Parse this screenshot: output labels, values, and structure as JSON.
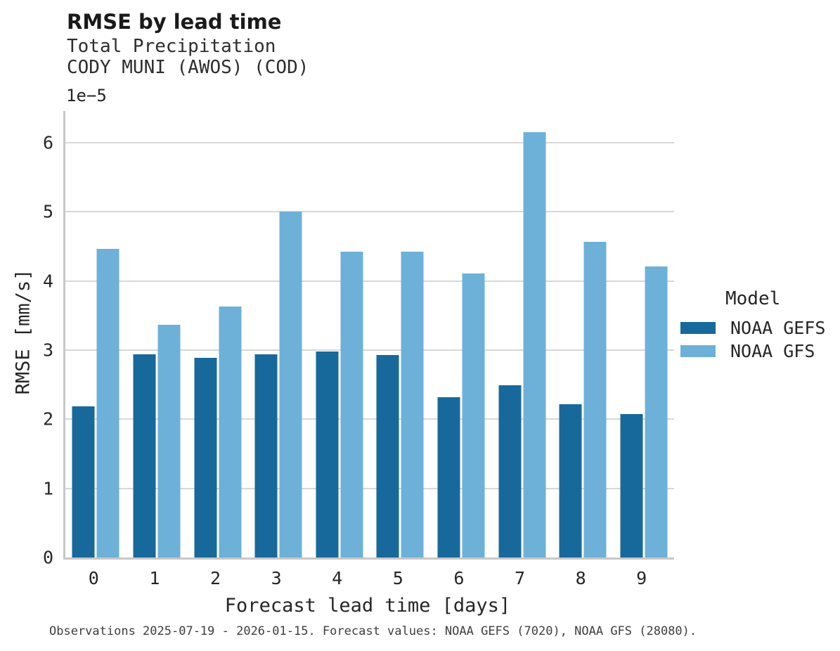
{
  "header": {
    "title": "RMSE by lead time",
    "subtitle1": "Total Precipitation",
    "subtitle2": "CODY MUNI (AWOS) (COD)"
  },
  "axes": {
    "y_offset_text": "1e−5",
    "ylabel": "RMSE [mm/s]",
    "xlabel": "Forecast lead time [days]"
  },
  "legend": {
    "title": "Model",
    "entries": [
      {
        "label": "NOAA GEFS",
        "color": "#17699b"
      },
      {
        "label": "NOAA GFS",
        "color": "#6db1d9"
      }
    ]
  },
  "caption": "Observations 2025-07-19 - 2026-01-15. Forecast values: NOAA GEFS (7020), NOAA GFS (28080).",
  "colors": {
    "gefs_bar": "#17699b",
    "gfs_bar": "#6db1d9",
    "gridline": "#d8d8d8",
    "spine": "#c8c8c8",
    "text": "#262626"
  },
  "chart_data": {
    "type": "bar",
    "title": "RMSE by lead time",
    "subtitle": "Total Precipitation — CODY MUNI (AWOS) (COD)",
    "xlabel": "Forecast lead time [days]",
    "ylabel": "RMSE [mm/s]",
    "y_scale_factor": "1e-5",
    "categories": [
      "0",
      "1",
      "2",
      "3",
      "4",
      "5",
      "6",
      "7",
      "8",
      "9"
    ],
    "series": [
      {
        "name": "NOAA GEFS",
        "color": "#17699b",
        "values": [
          2.19,
          2.94,
          2.89,
          2.94,
          2.98,
          2.93,
          2.32,
          2.49,
          2.22,
          2.07
        ]
      },
      {
        "name": "NOAA GFS",
        "color": "#6db1d9",
        "values": [
          4.46,
          3.37,
          3.63,
          5.0,
          4.42,
          4.42,
          4.11,
          6.15,
          4.57,
          4.21
        ]
      }
    ],
    "yticks": [
      0,
      1,
      2,
      3,
      4,
      5,
      6
    ],
    "ylim": [
      0,
      6.458
    ],
    "grid": true,
    "legend_title": "Model",
    "legend_position": "center right"
  }
}
